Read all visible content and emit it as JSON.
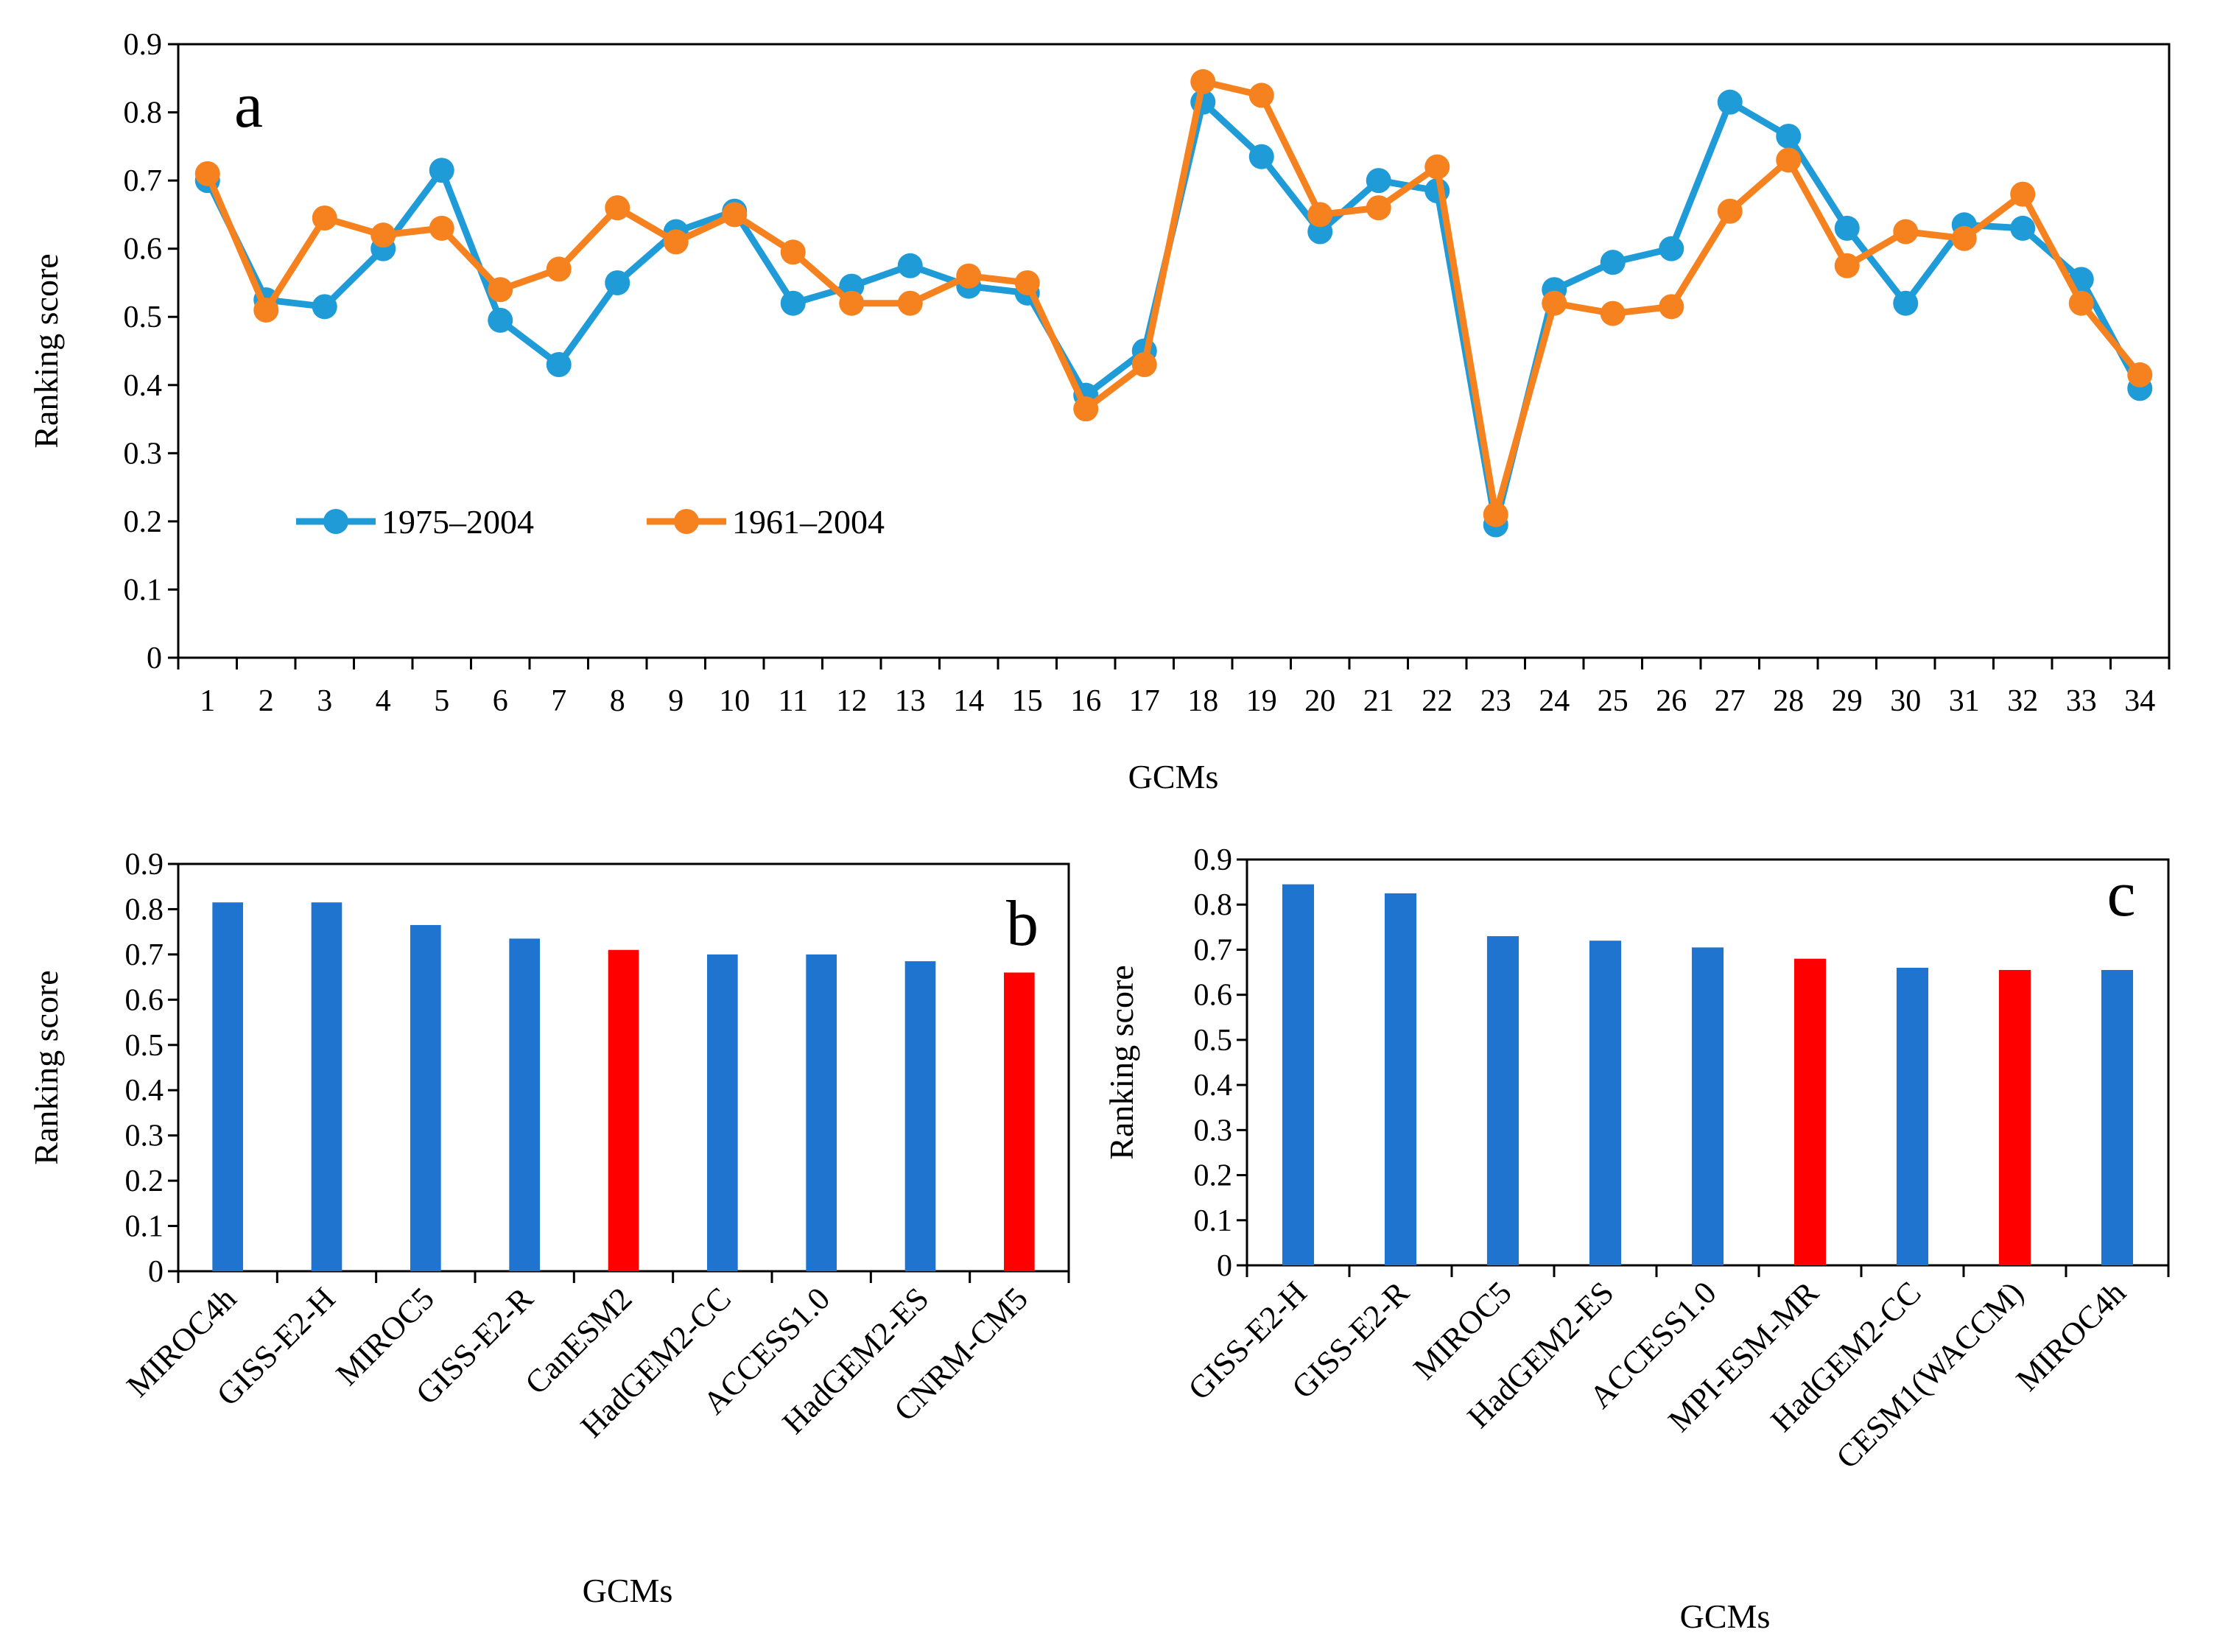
{
  "colors": {
    "series_1975": "#1F9BD7",
    "series_1961": "#F5821F",
    "bar_blue": "#1F74CF",
    "bar_red": "#FF0000",
    "axis": "#000000"
  },
  "chart_data": [
    {
      "id": "a",
      "type": "line",
      "panel_label": "a",
      "xlabel": "GCMs",
      "ylabel": "Ranking score",
      "ylim": [
        0,
        0.9
      ],
      "yticks": [
        "0",
        "0.1",
        "0.2",
        "0.3",
        "0.4",
        "0.5",
        "0.6",
        "0.7",
        "0.8",
        "0.9"
      ],
      "x": [
        "1",
        "2",
        "3",
        "4",
        "5",
        "6",
        "7",
        "8",
        "9",
        "10",
        "11",
        "12",
        "13",
        "14",
        "15",
        "16",
        "17",
        "18",
        "19",
        "20",
        "21",
        "22",
        "23",
        "24",
        "25",
        "26",
        "27",
        "28",
        "29",
        "30",
        "31",
        "32",
        "33",
        "34"
      ],
      "legend_position": "lower-left",
      "series": [
        {
          "name": "1975–2004",
          "color": "#1F9BD7",
          "values": [
            0.7,
            0.525,
            0.515,
            0.6,
            0.715,
            0.495,
            0.43,
            0.55,
            0.625,
            0.655,
            0.52,
            0.545,
            0.575,
            0.545,
            0.535,
            0.385,
            0.45,
            0.815,
            0.735,
            0.625,
            0.7,
            0.685,
            0.195,
            0.54,
            0.58,
            0.6,
            0.815,
            0.765,
            0.63,
            0.52,
            0.635,
            0.63,
            0.555,
            0.395
          ]
        },
        {
          "name": "1961–2004",
          "color": "#F5821F",
          "values": [
            0.71,
            0.51,
            0.645,
            0.62,
            0.63,
            0.54,
            0.57,
            0.66,
            0.61,
            0.65,
            0.595,
            0.52,
            0.52,
            0.56,
            0.55,
            0.365,
            0.43,
            0.845,
            0.825,
            0.65,
            0.66,
            0.72,
            0.21,
            0.52,
            0.505,
            0.515,
            0.655,
            0.73,
            0.575,
            0.625,
            0.615,
            0.68,
            0.52,
            0.415
          ]
        }
      ]
    },
    {
      "id": "b",
      "type": "bar",
      "panel_label": "b",
      "xlabel": "GCMs",
      "ylabel": "Ranking score",
      "ylim": [
        0,
        0.9
      ],
      "yticks": [
        "0",
        "0.1",
        "0.2",
        "0.3",
        "0.4",
        "0.5",
        "0.6",
        "0.7",
        "0.8",
        "0.9"
      ],
      "categories": [
        "MIROC4h",
        "GISS-E2-H",
        "MIROC5",
        "GISS-E2-R",
        "CanESM2",
        "HadGEM2-CC",
        "ACCESS1.0",
        "HadGEM2-ES",
        "CNRM-CM5"
      ],
      "values": [
        0.815,
        0.815,
        0.765,
        0.735,
        0.71,
        0.7,
        0.7,
        0.685,
        0.66
      ],
      "highlight": [
        false,
        false,
        false,
        false,
        true,
        false,
        false,
        false,
        true
      ]
    },
    {
      "id": "c",
      "type": "bar",
      "panel_label": "c",
      "xlabel": "GCMs",
      "ylabel": "Ranking score",
      "ylim": [
        0,
        0.9
      ],
      "yticks": [
        "0",
        "0.1",
        "0.2",
        "0.3",
        "0.4",
        "0.5",
        "0.6",
        "0.7",
        "0.8",
        "0.9"
      ],
      "categories": [
        "GISS-E2-H",
        "GISS-E2-R",
        "MIROC5",
        "HadGEM2-ES",
        "ACCESS1.0",
        "MPI-ESM-MR",
        "HadGEM2-CC",
        "CESM1(WACCM)",
        "MIROC4h"
      ],
      "values": [
        0.845,
        0.825,
        0.73,
        0.72,
        0.705,
        0.68,
        0.66,
        0.655,
        0.655
      ],
      "highlight": [
        false,
        false,
        false,
        false,
        false,
        true,
        false,
        true,
        false
      ]
    }
  ]
}
